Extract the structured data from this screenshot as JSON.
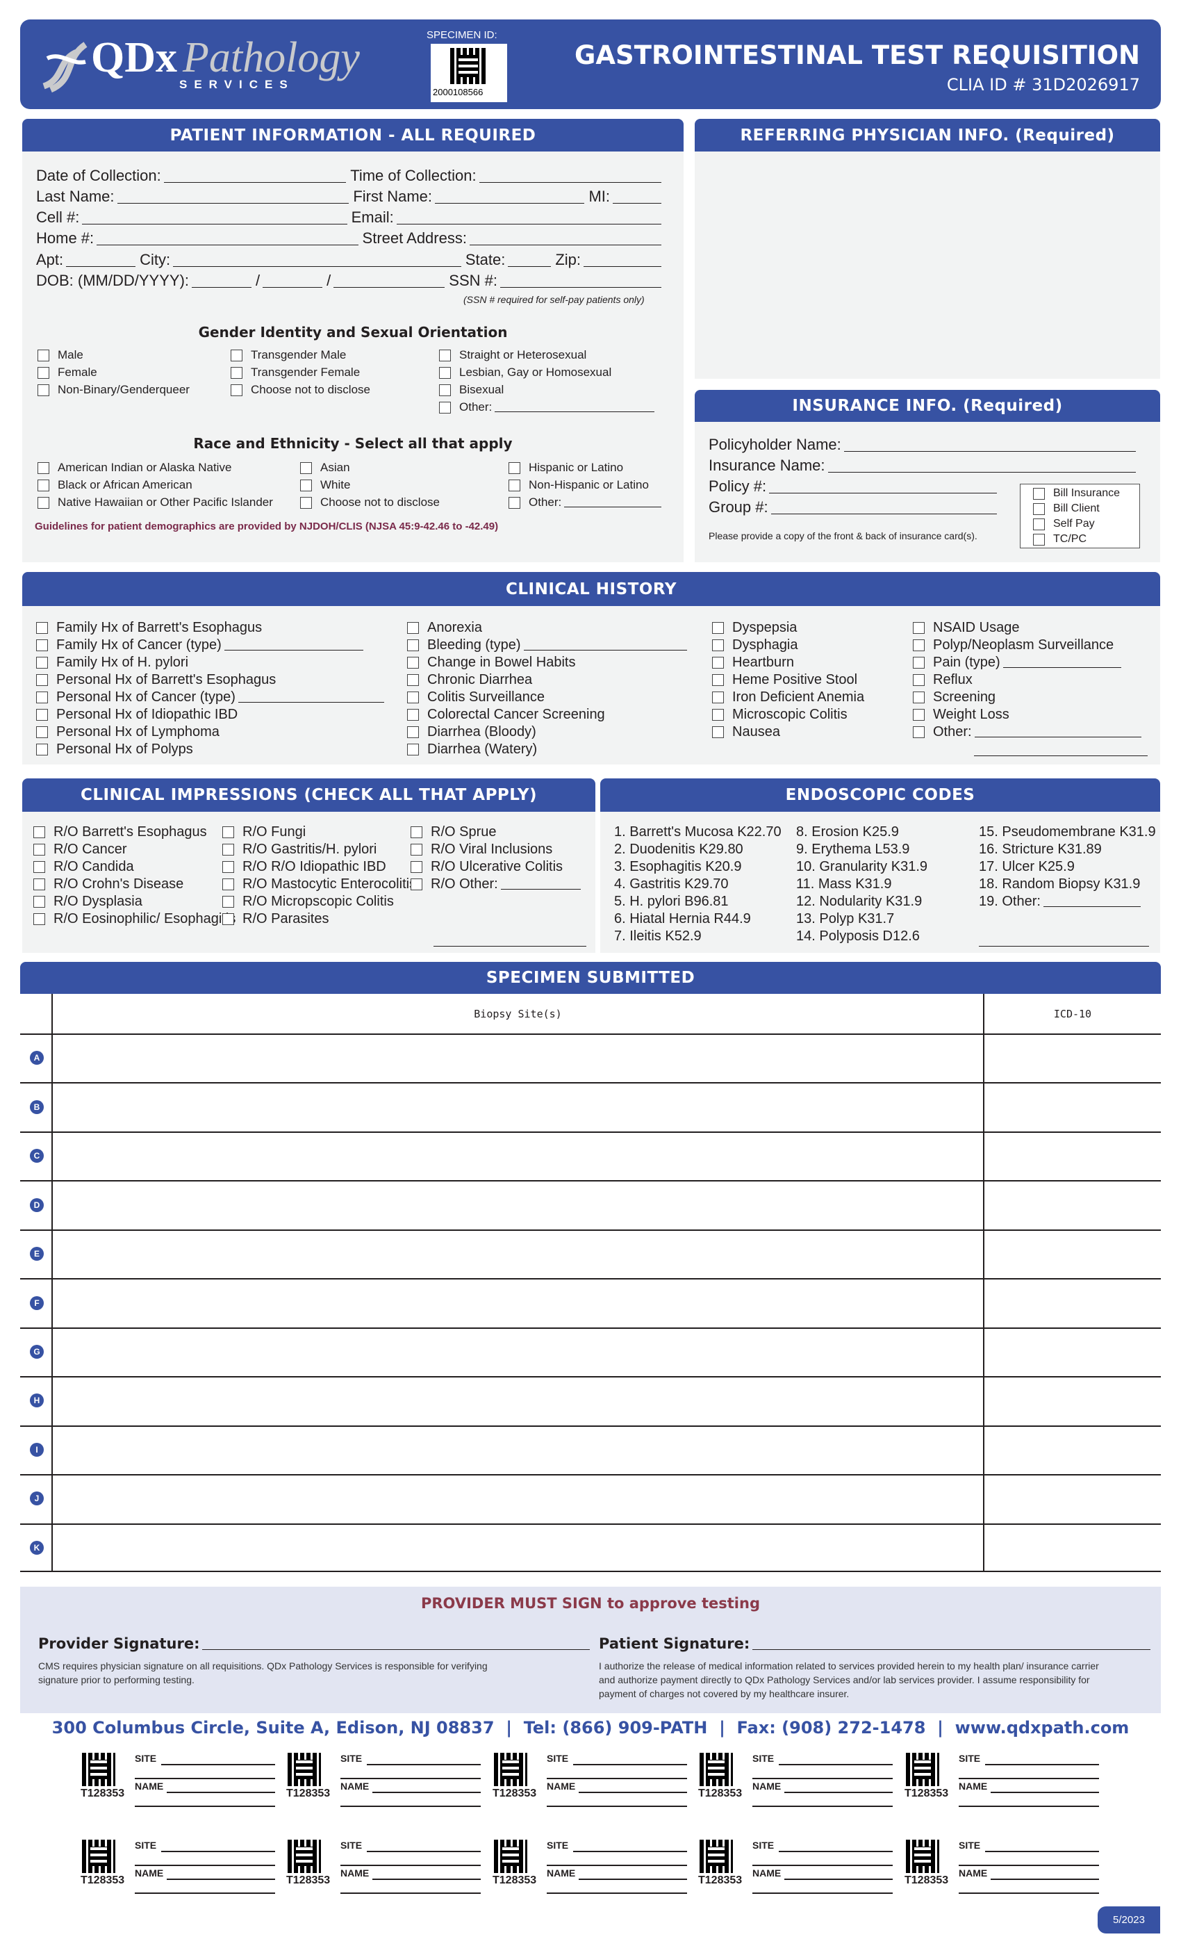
{
  "header": {
    "logo_main": "QDx",
    "logo_italic": "Pathology",
    "logo_sub": "SERVICES",
    "specimen_id_label": "SPECIMEN ID:",
    "specimen_id": "2000108566",
    "title": "GASTROINTESTINAL TEST REQUISITION",
    "clia": "CLIA ID # 31D2026917"
  },
  "patient": {
    "title": "PATIENT INFORMATION - ALL REQUIRED",
    "date_of_collection": "Date of Collection:",
    "time_of_collection": "Time of Collection:",
    "last_name": "Last Name:",
    "first_name": "First Name:",
    "mi": "MI:",
    "cell": "Cell #:",
    "email": "Email:",
    "home": "Home #:",
    "street": "Street Address:",
    "apt": "Apt:",
    "city": "City:",
    "state": "State:",
    "zip": "Zip:",
    "dob": "DOB: (MM/DD/YYYY):",
    "slash": "/",
    "ssn": "SSN #:",
    "ssn_note": "(SSN # required for self-pay patients only)",
    "gender_title": "Gender Identity and Sexual Orientation",
    "gender_items": [
      "Male",
      "Female",
      "Non-Binary/Genderqueer",
      "Transgender Male",
      "Transgender Female",
      "Choose not to disclose",
      "Straight or Heterosexual",
      "Lesbian, Gay or Homosexual",
      "Bisexual",
      "Other:"
    ],
    "race_title": "Race and Ethnicity - Select all that apply",
    "race_items": [
      "American Indian or Alaska Native",
      "Black or African American",
      "Native Hawaiian or Other Pacific Islander",
      "Asian",
      "White",
      "Choose not to disclose",
      "Hispanic or Latino",
      "Non-Hispanic or Latino",
      "Other:"
    ],
    "guidelines": "Guidelines for patient demographics are provided by NJDOH/CLIS (NJSA 45:9-42.46 to -42.49)"
  },
  "physician": {
    "title": "REFERRING PHYSICIAN INFO. (Required)"
  },
  "insurance": {
    "title": "INSURANCE INFO. (Required)",
    "policyholder": "Policyholder Name:",
    "insurance_name": "Insurance Name:",
    "policy": "Policy #:",
    "group": "Group #:",
    "note": "Please provide a copy of the front & back of insurance card(s).",
    "billing": [
      "Bill Insurance",
      "Bill Client",
      "Self Pay",
      "TC/PC"
    ]
  },
  "clinical_history": {
    "title": "CLINICAL HISTORY",
    "columns": [
      [
        "Family Hx of Barrett's Esophagus",
        "Family Hx of Cancer (type)",
        "Family Hx of H. pylori",
        "Personal Hx of Barrett's Esophagus",
        "Personal Hx of Cancer (type)",
        "Personal Hx of Idiopathic IBD",
        "Personal Hx of Lymphoma",
        "Personal Hx of Polyps"
      ],
      [
        "Anorexia",
        "Bleeding (type)",
        "Change in Bowel Habits",
        "Chronic Diarrhea",
        "Colitis Surveillance",
        "Colorectal Cancer Screening",
        "Diarrhea (Bloody)",
        "Diarrhea (Watery)"
      ],
      [
        "Dyspepsia",
        "Dysphagia",
        "Heartburn",
        "Heme Positive Stool",
        "Iron Deficient Anemia",
        "Microscopic Colitis",
        "Nausea"
      ],
      [
        "NSAID Usage",
        "Polyp/Neoplasm Surveillance",
        "Pain (type)",
        "Reflux",
        "Screening",
        "Weight Loss",
        "Other:"
      ]
    ]
  },
  "impressions": {
    "title": "CLINICAL IMPRESSIONS (CHECK ALL THAT APPLY)",
    "columns": [
      [
        "R/O Barrett's Esophagus",
        "R/O Cancer",
        "R/O Candida",
        "R/O Crohn's Disease",
        "R/O Dysplasia",
        "R/O Eosinophilic/ Esophagitis"
      ],
      [
        "R/O Fungi",
        "R/O Gastritis/H. pylori",
        "R/O R/O Idiopathic IBD",
        "R/O Mastocytic Enterocolitis",
        "R/O Micropscopic Colitis",
        "R/O Parasites"
      ],
      [
        "R/O Sprue",
        "R/O Viral Inclusions",
        "R/O Ulcerative Colitis",
        "R/O Other:"
      ]
    ]
  },
  "endoscopic": {
    "title": "ENDOSCOPIC CODES",
    "columns": [
      [
        "1. Barrett's Mucosa K22.70",
        "2. Duodenitis K29.80",
        "3. Esophagitis K20.9",
        "4. Gastritis K29.70",
        "5. H. pylori B96.81",
        "6. Hiatal Hernia R44.9",
        "7. Ileitis K52.9"
      ],
      [
        "8. Erosion K25.9",
        "9. Erythema L53.9",
        "10. Granularity K31.9",
        "11. Mass K31.9",
        "12. Nodularity K31.9",
        "13. Polyp K31.7",
        "14. Polyposis D12.6"
      ],
      [
        "15. Pseudomembrane K31.9",
        "16. Stricture K31.89",
        "17. Ulcer K25.9",
        "18. Random Biopsy K31.9",
        "19. Other:"
      ]
    ]
  },
  "specimen": {
    "title": "SPECIMEN SUBMITTED",
    "col_site": "Biopsy Site(s)",
    "col_icd": "ICD-10",
    "rows": [
      "A",
      "B",
      "C",
      "D",
      "E",
      "F",
      "G",
      "H",
      "I",
      "J",
      "K"
    ]
  },
  "signature": {
    "title": "PROVIDER MUST SIGN to approve testing",
    "provider_label": "Provider Signature:",
    "provider_note": "CMS requires physician signature on all requisitions. QDx Pathology Services is responsible for verifying signature prior to performing testing.",
    "patient_label": "Patient Signature:",
    "patient_note": "I authorize the release of medical information related to services provided herein to my health plan/ insurance carrier and authorize payment directly to QDx Pathology Services and/or lab services provider. I assume responsibility for payment of charges not covered by my healthcare insurer."
  },
  "footer": {
    "address": "300 Columbus Circle, Suite A, Edison, NJ 08837  |  Tel: (866) 909-PATH  |  Fax: (908) 272-1478  |  www.qdxpath.com",
    "label_code": "T128353",
    "site": "SITE",
    "name": "NAME",
    "version": "5/2023"
  },
  "colors": {
    "brand_blue": "#3752a3",
    "panel": "#f2f3f3",
    "signature_panel": "#e2e5f2",
    "warning": "#8b3a4a"
  }
}
